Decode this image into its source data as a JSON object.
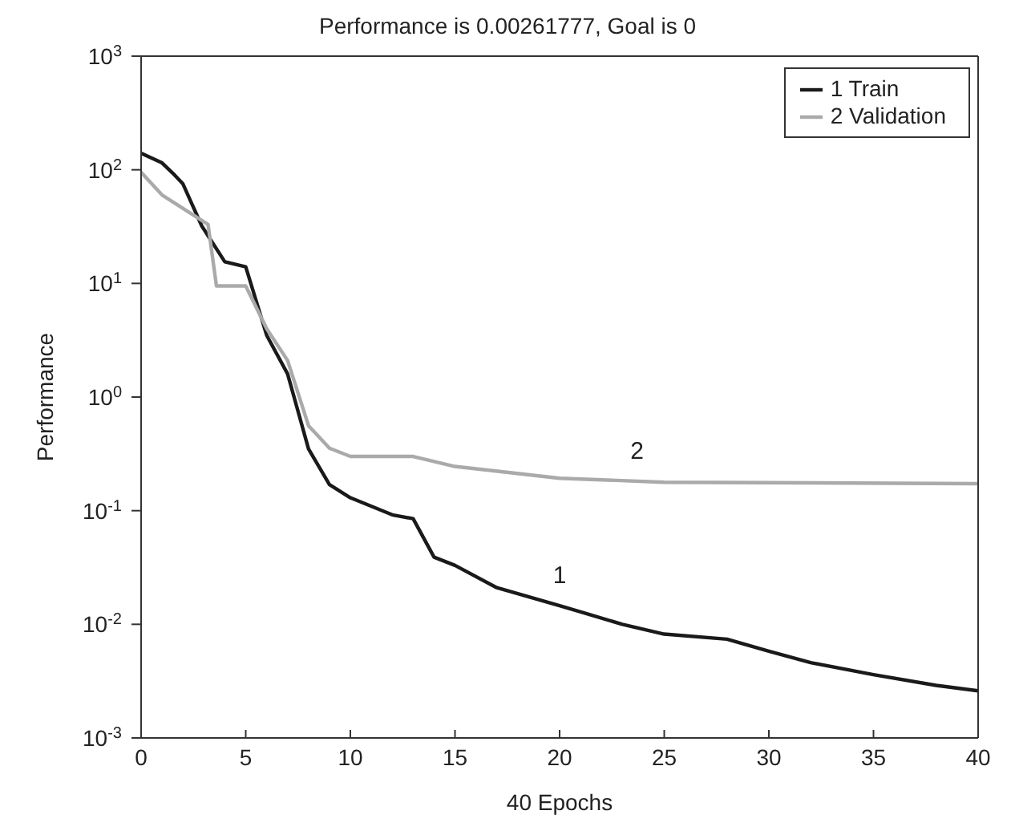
{
  "chart_data": {
    "type": "line",
    "title": "Performance is 0.00261777, Goal is 0",
    "xlabel": "40 Epochs",
    "ylabel": "Performance",
    "log": "y",
    "grid": false,
    "legend": "top right",
    "marker": "none",
    "line_style": "solid",
    "xlim": [
      0,
      40
    ],
    "xticks": [
      0,
      5,
      10,
      15,
      20,
      25,
      30,
      35,
      40
    ],
    "ylim": [
      0.001,
      1000
    ],
    "yticks": [
      {
        "value": 0.001,
        "label": "10$^{-3}$"
      },
      {
        "value": 0.01,
        "label": "10$^{-2}$"
      },
      {
        "value": 0.1,
        "label": "10$^{-1}$"
      },
      {
        "value": 1,
        "label": "10$^{0}$"
      },
      {
        "value": 10,
        "label": "10$^{1}$"
      },
      {
        "value": 100,
        "label": "10$^{2}$"
      },
      {
        "value": 1000,
        "label": "10$^{3}$"
      }
    ],
    "series": [
      {
        "name": "1 Train",
        "color": "#1a1a1a",
        "x": [
          0,
          1,
          1.6,
          2,
          2.9,
          4,
          5,
          6,
          7,
          8,
          9,
          10,
          12,
          13,
          14,
          15,
          17,
          20,
          23,
          25,
          28,
          30,
          32,
          35,
          38,
          40
        ],
        "values": [
          140,
          115,
          90,
          75,
          32,
          15.5,
          14,
          3.5,
          1.6,
          0.35,
          0.17,
          0.13,
          0.092,
          0.085,
          0.039,
          0.033,
          0.021,
          0.0146,
          0.01,
          0.0082,
          0.0074,
          0.0058,
          0.0046,
          0.0036,
          0.0029,
          0.0026
        ]
      },
      {
        "name": "2 Validation",
        "color": "#aaaaaa",
        "x": [
          0,
          1,
          1.6,
          3.2,
          3.6,
          5,
          6,
          7,
          8,
          9,
          10,
          13,
          15,
          20,
          25,
          40
        ],
        "values": [
          95,
          60,
          51,
          33,
          9.5,
          9.5,
          4,
          2.1,
          0.56,
          0.355,
          0.3,
          0.3,
          0.245,
          0.193,
          0.178,
          0.173
        ]
      }
    ],
    "annotations": [
      {
        "text": "1",
        "x": 20,
        "y": 0.0146
      },
      {
        "text": "2",
        "x": 23.7,
        "y": 0.182
      }
    ]
  }
}
